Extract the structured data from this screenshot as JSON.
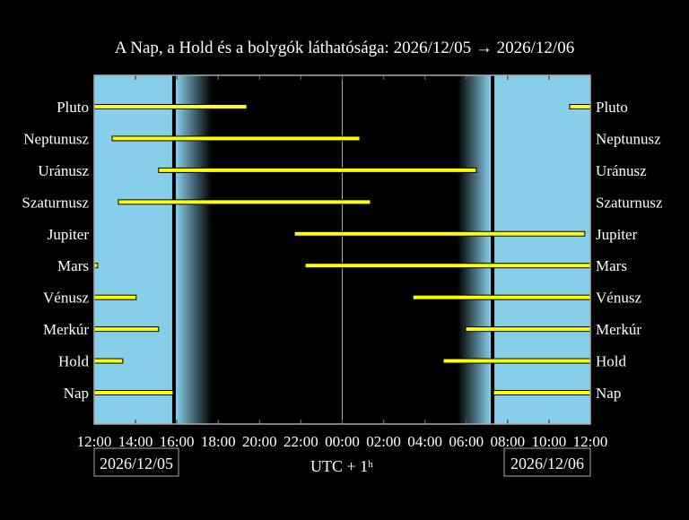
{
  "chart_data": {
    "type": "gantt",
    "title": "A Nap, a Hold és a bolygók láthatósága: 2026/12/05 → 2026/12/06",
    "xlabel": "UTC + 1ʰ",
    "xlim": [
      "2026/12/05 12:00",
      "2026/12/06 12:00"
    ],
    "x_tick_labels": [
      "12:00",
      "14:00",
      "16:00",
      "18:00",
      "20:00",
      "22:00",
      "00:00",
      "02:00",
      "04:00",
      "06:00",
      "08:00",
      "10:00",
      "12:00"
    ],
    "date_labels": {
      "start": "2026/12/05",
      "end": "2026/12/06"
    },
    "daylight": [
      {
        "from": "2026/12/05 12:00",
        "to": "2026/12/05 15:49"
      },
      {
        "from": "2026/12/06 07:19",
        "to": "2026/12/06 12:00"
      }
    ],
    "twilight": [
      {
        "from": "2026/12/05 15:49",
        "to": "2026/12/05 17:41",
        "direction": "dusk"
      },
      {
        "from": "2026/12/06 05:35",
        "to": "2026/12/06 07:19",
        "direction": "dawn"
      }
    ],
    "midnight_line": "2026/12/06 00:00",
    "colors": {
      "day": "#87ceeb",
      "night": "#000000",
      "bar": "#ffff00",
      "bar_edge": "#000000",
      "grid": "#aaaaaa"
    },
    "series": [
      {
        "name": "Pluto",
        "intervals": [
          [
            "2026/12/05 12:00",
            "2026/12/05 19:23"
          ],
          [
            "2026/12/06 11:00",
            "2026/12/06 12:00"
          ]
        ]
      },
      {
        "name": "Neptunusz",
        "intervals": [
          [
            "2026/12/05 12:52",
            "2026/12/06 00:51"
          ]
        ]
      },
      {
        "name": "Uránusz",
        "intervals": [
          [
            "2026/12/05 15:07",
            "2026/12/06 06:29"
          ]
        ]
      },
      {
        "name": "Szaturnusz",
        "intervals": [
          [
            "2026/12/05 13:10",
            "2026/12/06 01:22"
          ]
        ]
      },
      {
        "name": "Jupiter",
        "intervals": [
          [
            "2026/12/05 21:41",
            "2026/12/06 11:44"
          ]
        ]
      },
      {
        "name": "Mars",
        "intervals": [
          [
            "2026/12/05 12:00",
            "2026/12/05 12:10"
          ],
          [
            "2026/12/05 22:12",
            "2026/12/06 12:00"
          ]
        ]
      },
      {
        "name": "Vénusz",
        "intervals": [
          [
            "2026/12/05 12:00",
            "2026/12/05 14:02"
          ],
          [
            "2026/12/06 03:25",
            "2026/12/06 12:00"
          ]
        ]
      },
      {
        "name": "Merkúr",
        "intervals": [
          [
            "2026/12/05 12:00",
            "2026/12/05 15:07"
          ],
          [
            "2026/12/06 05:58",
            "2026/12/06 12:00"
          ]
        ]
      },
      {
        "name": "Hold",
        "intervals": [
          [
            "2026/12/05 12:00",
            "2026/12/05 13:23"
          ],
          [
            "2026/12/06 04:53",
            "2026/12/06 12:00"
          ]
        ]
      },
      {
        "name": "Nap",
        "intervals": [
          [
            "2026/12/05 12:00",
            "2026/12/05 15:49"
          ],
          [
            "2026/12/06 07:19",
            "2026/12/06 12:00"
          ]
        ]
      }
    ]
  }
}
